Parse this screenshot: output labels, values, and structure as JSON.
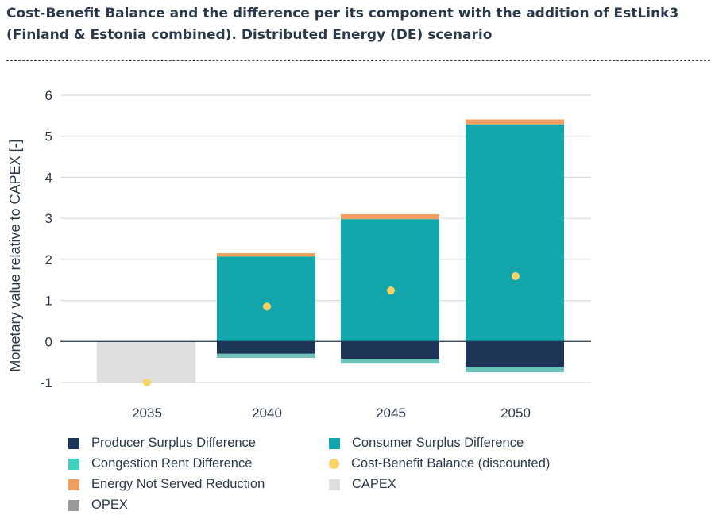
{
  "title": "Cost-Benefit Balance and the difference per its component with the addition of EstLink3 (Finland & Estonia combined). Distributed Energy (DE) scenario",
  "chart_data": {
    "type": "bar",
    "stacked": true,
    "categories": [
      "2035",
      "2040",
      "2045",
      "2050"
    ],
    "ylabel": "Monetary value relative to CAPEX [-]",
    "ylim": [
      -1,
      6
    ],
    "yticks": [
      -1,
      0,
      1,
      2,
      3,
      4,
      5,
      6
    ],
    "series": [
      {
        "key": "producer",
        "name": "Producer Surplus Difference",
        "color": "#1c3557",
        "values": [
          0,
          -0.3,
          -0.42,
          -0.62
        ]
      },
      {
        "key": "congestion",
        "name": "Congestion Rent Difference",
        "color": "#6cc1b8",
        "values": [
          0,
          -0.1,
          -0.12,
          -0.13
        ]
      },
      {
        "key": "consumer",
        "name": "Consumer Surplus Difference",
        "color": "#13a6ad",
        "values": [
          0,
          2.07,
          2.98,
          5.29
        ]
      },
      {
        "key": "ens",
        "name": "Energy Not Served Reduction",
        "color": "#ee9f5f",
        "values": [
          0,
          0.08,
          0.12,
          0.12
        ]
      },
      {
        "key": "capex",
        "name": "CAPEX",
        "color": "#dedede",
        "values": [
          -1,
          0,
          0,
          0
        ]
      },
      {
        "key": "opex",
        "name": "OPEX",
        "color": "#9b9b9b",
        "values": [
          0,
          0,
          0,
          0
        ]
      }
    ],
    "balance": {
      "name": "Cost-Benefit Balance (discounted)",
      "color": "#f7d468",
      "values": [
        -1.0,
        0.85,
        1.24,
        1.59
      ]
    }
  },
  "legend": [
    {
      "label": "Producer Surplus Difference",
      "color": "#1c3557",
      "shape": "square"
    },
    {
      "label": "Consumer Surplus Difference",
      "color": "#13a6ad",
      "shape": "square"
    },
    {
      "label": "Congestion Rent Difference",
      "color": "#40d1bc",
      "shape": "square"
    },
    {
      "label": "Cost-Benefit Balance (discounted)",
      "color": "#f7d468",
      "shape": "dot"
    },
    {
      "label": "Energy Not Served Reduction",
      "color": "#ee9f5f",
      "shape": "square"
    },
    {
      "label": "CAPEX",
      "color": "#dedede",
      "shape": "square"
    },
    {
      "label": "OPEX",
      "color": "#9b9b9b",
      "shape": "square"
    }
  ]
}
